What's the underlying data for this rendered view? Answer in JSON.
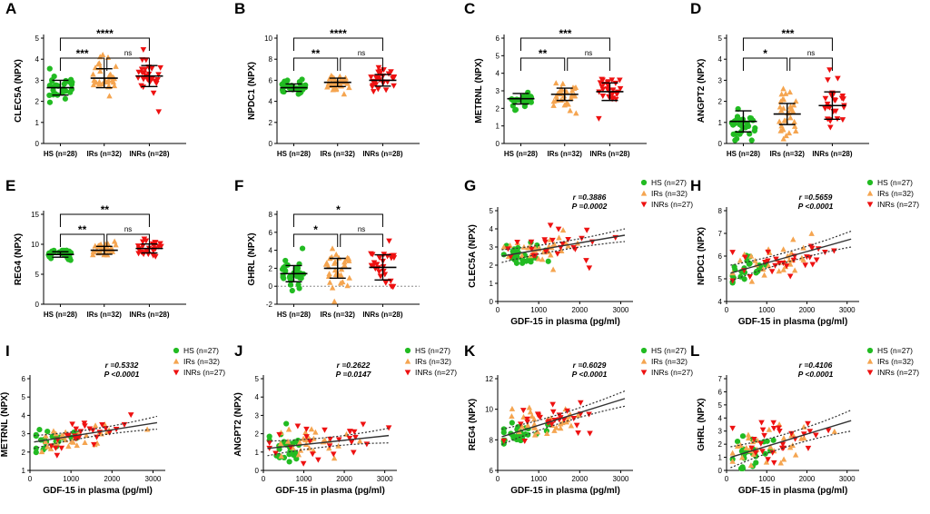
{
  "colors": {
    "HS": "#22bb22",
    "IRs": "#f5a550",
    "INRs": "#ee1111",
    "axis": "#000000",
    "fit": "#333333"
  },
  "chart_data": [
    {
      "panel": "A",
      "type": "scatter-dot",
      "ylabel": "CLEC5A (NPX)",
      "yticks": [
        0,
        1,
        2,
        3,
        4,
        5
      ],
      "ylim": [
        0,
        5
      ],
      "categories": [
        "HS (n=28)",
        "IRs (n=32)",
        "INRs (n=28)"
      ],
      "series": [
        {
          "name": "HS",
          "mean": 2.65,
          "sd": 0.35,
          "n": 28
        },
        {
          "name": "IRs",
          "mean": 3.1,
          "sd": 0.45,
          "n": 32
        },
        {
          "name": "INRs",
          "mean": 3.2,
          "sd": 0.5,
          "n": 28
        }
      ],
      "comparisons": [
        {
          "from": 0,
          "to": 1,
          "label": "***"
        },
        {
          "from": 1,
          "to": 2,
          "label": "ns"
        },
        {
          "from": 0,
          "to": 2,
          "label": "****"
        }
      ]
    },
    {
      "panel": "B",
      "type": "scatter-dot",
      "ylabel": "NPDC1 (NPX)",
      "yticks": [
        0,
        2,
        4,
        6,
        8,
        10
      ],
      "ylim": [
        0,
        10
      ],
      "categories": [
        "HS (n=28)",
        "IRs (n=32)",
        "INRs (n=28)"
      ],
      "series": [
        {
          "name": "HS",
          "mean": 5.3,
          "sd": 0.35,
          "n": 28
        },
        {
          "name": "IRs",
          "mean": 5.8,
          "sd": 0.4,
          "n": 32
        },
        {
          "name": "INRs",
          "mean": 6.0,
          "sd": 0.55,
          "n": 28
        }
      ],
      "comparisons": [
        {
          "from": 0,
          "to": 1,
          "label": "**"
        },
        {
          "from": 1,
          "to": 2,
          "label": "ns"
        },
        {
          "from": 0,
          "to": 2,
          "label": "****"
        }
      ]
    },
    {
      "panel": "C",
      "type": "scatter-dot",
      "ylabel": "METRNL (NPX)",
      "yticks": [
        0,
        1,
        2,
        3,
        4,
        5,
        6
      ],
      "ylim": [
        0,
        6
      ],
      "categories": [
        "HS (n=28)",
        "IRs (n=32)",
        "INRs (n=28)"
      ],
      "series": [
        {
          "name": "HS",
          "mean": 2.55,
          "sd": 0.3,
          "n": 28
        },
        {
          "name": "IRs",
          "mean": 2.8,
          "sd": 0.35,
          "n": 32
        },
        {
          "name": "INRs",
          "mean": 2.95,
          "sd": 0.5,
          "n": 28
        }
      ],
      "comparisons": [
        {
          "from": 0,
          "to": 1,
          "label": "**"
        },
        {
          "from": 1,
          "to": 2,
          "label": "ns"
        },
        {
          "from": 0,
          "to": 2,
          "label": "***"
        }
      ]
    },
    {
      "panel": "D",
      "type": "scatter-dot",
      "ylabel": "ANGPT2 (NPX)",
      "yticks": [
        0,
        1,
        2,
        3,
        4,
        5
      ],
      "ylim": [
        0,
        5
      ],
      "categories": [
        "HS (n=28)",
        "IRs (n=32)",
        "INRs (n=28)"
      ],
      "series": [
        {
          "name": "HS",
          "mean": 1.05,
          "sd": 0.5,
          "n": 28
        },
        {
          "name": "IRs",
          "mean": 1.4,
          "sd": 0.5,
          "n": 32
        },
        {
          "name": "INRs",
          "mean": 1.8,
          "sd": 0.65,
          "n": 28
        }
      ],
      "comparisons": [
        {
          "from": 0,
          "to": 1,
          "label": "*"
        },
        {
          "from": 1,
          "to": 2,
          "label": "ns"
        },
        {
          "from": 0,
          "to": 2,
          "label": "***"
        }
      ]
    },
    {
      "panel": "E",
      "type": "scatter-dot",
      "ylabel": "REG4 (NPX)",
      "yticks": [
        0,
        5,
        10,
        15
      ],
      "ylim": [
        0,
        15
      ],
      "categories": [
        "HS (n=28)",
        "IRs (n=32)",
        "INRs (n=28)"
      ],
      "series": [
        {
          "name": "HS",
          "mean": 8.3,
          "sd": 0.45,
          "n": 28
        },
        {
          "name": "IRs",
          "mean": 9.0,
          "sd": 0.65,
          "n": 32
        },
        {
          "name": "INRs",
          "mean": 9.3,
          "sd": 0.75,
          "n": 28
        }
      ],
      "comparisons": [
        {
          "from": 0,
          "to": 1,
          "label": "**"
        },
        {
          "from": 1,
          "to": 2,
          "label": "ns"
        },
        {
          "from": 0,
          "to": 2,
          "label": "**"
        }
      ]
    },
    {
      "panel": "F",
      "type": "scatter-dot",
      "ylabel": "GHRL (NPX)",
      "yticks": [
        -2,
        0,
        2,
        4,
        6,
        8
      ],
      "ylim": [
        -2,
        8
      ],
      "categories": [
        "HS (n=28)",
        "IRs (n=32)",
        "INRs (n=28)"
      ],
      "series": [
        {
          "name": "HS",
          "mean": 1.4,
          "sd": 0.9,
          "n": 28
        },
        {
          "name": "IRs",
          "mean": 2.0,
          "sd": 1.1,
          "n": 32
        },
        {
          "name": "INRs",
          "mean": 2.1,
          "sd": 1.4,
          "n": 28
        }
      ],
      "comparisons": [
        {
          "from": 0,
          "to": 1,
          "label": "*"
        },
        {
          "from": 1,
          "to": 2,
          "label": "ns"
        },
        {
          "from": 0,
          "to": 2,
          "label": "*"
        }
      ]
    },
    {
      "panel": "G",
      "type": "scatter-regression",
      "ylabel": "CLEC5A (NPX)",
      "xlabel": "GDF-15 in plasma (pg/ml)",
      "xticks": [
        0,
        1000,
        2000,
        3000
      ],
      "xlim": [
        0,
        3300
      ],
      "yticks": [
        0,
        1,
        2,
        3,
        4,
        5
      ],
      "ylim": [
        0,
        5
      ],
      "r": "r =0.3886",
      "p": "P =0.0002",
      "legend": [
        "HS (n=27)",
        "IRs (n=32)",
        "INRs (n=27)"
      ],
      "fit": {
        "x1": 100,
        "y1": 2.5,
        "x2": 3100,
        "y2": 3.65,
        "band_low": 0.22,
        "band_high": 0.35
      },
      "groups": [
        {
          "name": "HS",
          "n": 27,
          "xmean": 550,
          "xsd": 280,
          "ymean": 2.65,
          "ysd": 0.35
        },
        {
          "name": "IRs",
          "n": 32,
          "xmean": 1100,
          "xsd": 550,
          "ymean": 3.0,
          "ysd": 0.4
        },
        {
          "name": "INRs",
          "n": 27,
          "xmean": 1350,
          "xsd": 600,
          "ymean": 3.25,
          "ysd": 0.45
        }
      ]
    },
    {
      "panel": "H",
      "type": "scatter-regression",
      "ylabel": "NPDC1 (NPX)",
      "xlabel": "GDF-15 in plasma (pg/ml)",
      "xticks": [
        0,
        1000,
        2000,
        3000
      ],
      "xlim": [
        0,
        3300
      ],
      "yticks": [
        4,
        5,
        6,
        7,
        8
      ],
      "ylim": [
        4,
        8
      ],
      "r": "r =0.5659",
      "p": "P <0.0001",
      "legend": [
        "HS (n=27)",
        "IRs (n=32)",
        "INRs (n=27)"
      ],
      "fit": {
        "x1": 100,
        "y1": 5.25,
        "x2": 3100,
        "y2": 6.75,
        "band_low": 0.22,
        "band_high": 0.35
      },
      "groups": [
        {
          "name": "HS",
          "n": 27,
          "xmean": 550,
          "xsd": 280,
          "ymean": 5.3,
          "ysd": 0.3
        },
        {
          "name": "IRs",
          "n": 32,
          "xmean": 1100,
          "xsd": 550,
          "ymean": 5.85,
          "ysd": 0.35
        },
        {
          "name": "INRs",
          "n": 27,
          "xmean": 1350,
          "xsd": 600,
          "ymean": 6.1,
          "ysd": 0.45
        }
      ]
    },
    {
      "panel": "I",
      "type": "scatter-regression",
      "ylabel": "METRNL (NPX)",
      "xlabel": "GDF-15 in plasma (pg/ml)",
      "xticks": [
        0,
        1000,
        2000,
        3000
      ],
      "xlim": [
        0,
        3300
      ],
      "yticks": [
        1,
        2,
        3,
        4,
        5,
        6
      ],
      "ylim": [
        1,
        6
      ],
      "r": "r =0.5332",
      "p": "P <0.0001",
      "legend": [
        "HS (n=27)",
        "IRs (n=32)",
        "INRs (n=27)"
      ],
      "fit": {
        "x1": 100,
        "y1": 2.55,
        "x2": 3100,
        "y2": 3.6,
        "band_low": 0.2,
        "band_high": 0.35
      },
      "groups": [
        {
          "name": "HS",
          "n": 27,
          "xmean": 550,
          "xsd": 280,
          "ymean": 2.6,
          "ysd": 0.3
        },
        {
          "name": "IRs",
          "n": 32,
          "xmean": 1100,
          "xsd": 550,
          "ymean": 2.85,
          "ysd": 0.35
        },
        {
          "name": "INRs",
          "n": 27,
          "xmean": 1350,
          "xsd": 600,
          "ymean": 3.0,
          "ysd": 0.45
        }
      ]
    },
    {
      "panel": "J",
      "type": "scatter-regression",
      "ylabel": "ANGPT2 (NPX)",
      "xlabel": "GDF-15 in plasma (pg/ml)",
      "xticks": [
        0,
        1000,
        2000,
        3000
      ],
      "xlim": [
        0,
        3300
      ],
      "yticks": [
        0,
        1,
        2,
        3,
        4,
        5
      ],
      "ylim": [
        0,
        5
      ],
      "r": "r =0.2622",
      "p": "P =0.0147",
      "legend": [
        "HS (n=27)",
        "IRs (n=32)",
        "INRs (n=27)"
      ],
      "fit": {
        "x1": 100,
        "y1": 1.2,
        "x2": 3100,
        "y2": 1.9,
        "band_low": 0.25,
        "band_high": 0.4
      },
      "groups": [
        {
          "name": "HS",
          "n": 27,
          "xmean": 550,
          "xsd": 280,
          "ymean": 1.1,
          "ysd": 0.45
        },
        {
          "name": "IRs",
          "n": 32,
          "xmean": 1100,
          "xsd": 550,
          "ymean": 1.4,
          "ysd": 0.45
        },
        {
          "name": "INRs",
          "n": 27,
          "xmean": 1350,
          "xsd": 600,
          "ymean": 1.7,
          "ysd": 0.6
        }
      ]
    },
    {
      "panel": "K",
      "type": "scatter-regression",
      "ylabel": "REG4 (NPX)",
      "xlabel": "GDF-15 in plasma (pg/ml)",
      "xticks": [
        0,
        1000,
        2000,
        3000
      ],
      "xlim": [
        0,
        3300
      ],
      "yticks": [
        6,
        8,
        10,
        12
      ],
      "ylim": [
        6,
        12
      ],
      "r": "r =0.6029",
      "p": "P <0.0001",
      "legend": [
        "HS (n=27)",
        "IRs (n=32)",
        "INRs (n=27)"
      ],
      "fit": {
        "x1": 100,
        "y1": 8.2,
        "x2": 3100,
        "y2": 10.7,
        "band_low": 0.3,
        "band_high": 0.5
      },
      "groups": [
        {
          "name": "HS",
          "n": 27,
          "xmean": 550,
          "xsd": 280,
          "ymean": 8.2,
          "ysd": 0.4
        },
        {
          "name": "IRs",
          "n": 32,
          "xmean": 1100,
          "xsd": 550,
          "ymean": 9.0,
          "ysd": 0.55
        },
        {
          "name": "INRs",
          "n": 27,
          "xmean": 1350,
          "xsd": 600,
          "ymean": 9.3,
          "ysd": 0.65
        }
      ]
    },
    {
      "panel": "L",
      "type": "scatter-regression",
      "ylabel": "GHRL (NPX)",
      "xlabel": "GDF-15 in plasma (pg/ml)",
      "xticks": [
        0,
        1000,
        2000,
        3000
      ],
      "xlim": [
        0,
        3300
      ],
      "yticks": [
        0,
        1,
        2,
        3,
        4,
        5,
        6,
        7
      ],
      "ylim": [
        0,
        7
      ],
      "r": "r =0.4106",
      "p": "P <0.0001",
      "legend": [
        "HS (n=27)",
        "IRs (n=32)",
        "INRs (n=27)"
      ],
      "fit": {
        "x1": 100,
        "y1": 1.0,
        "x2": 3100,
        "y2": 3.8,
        "band_low": 0.5,
        "band_high": 0.8
      },
      "groups": [
        {
          "name": "HS",
          "n": 27,
          "xmean": 550,
          "xsd": 280,
          "ymean": 1.3,
          "ysd": 0.8
        },
        {
          "name": "IRs",
          "n": 32,
          "xmean": 1100,
          "xsd": 550,
          "ymean": 2.0,
          "ysd": 0.9
        },
        {
          "name": "INRs",
          "n": 27,
          "xmean": 1350,
          "xsd": 600,
          "ymean": 2.2,
          "ysd": 1.2
        }
      ]
    }
  ]
}
